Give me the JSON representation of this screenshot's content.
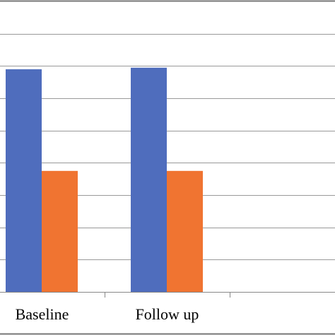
{
  "chart_data": {
    "type": "bar",
    "categories": [
      "Baseline",
      "Follow up",
      ""
    ],
    "series": [
      {
        "values": [
          6.9,
          6.95,
          null
        ],
        "color": "#4f6dbd"
      },
      {
        "values": [
          3.75,
          3.75,
          null
        ],
        "color": "#f07431"
      }
    ],
    "ylim": [
      0,
      8.5
    ],
    "grid": true,
    "gridline_color": "#999999",
    "axis_color": "#888888",
    "frame_color": "#777777"
  }
}
